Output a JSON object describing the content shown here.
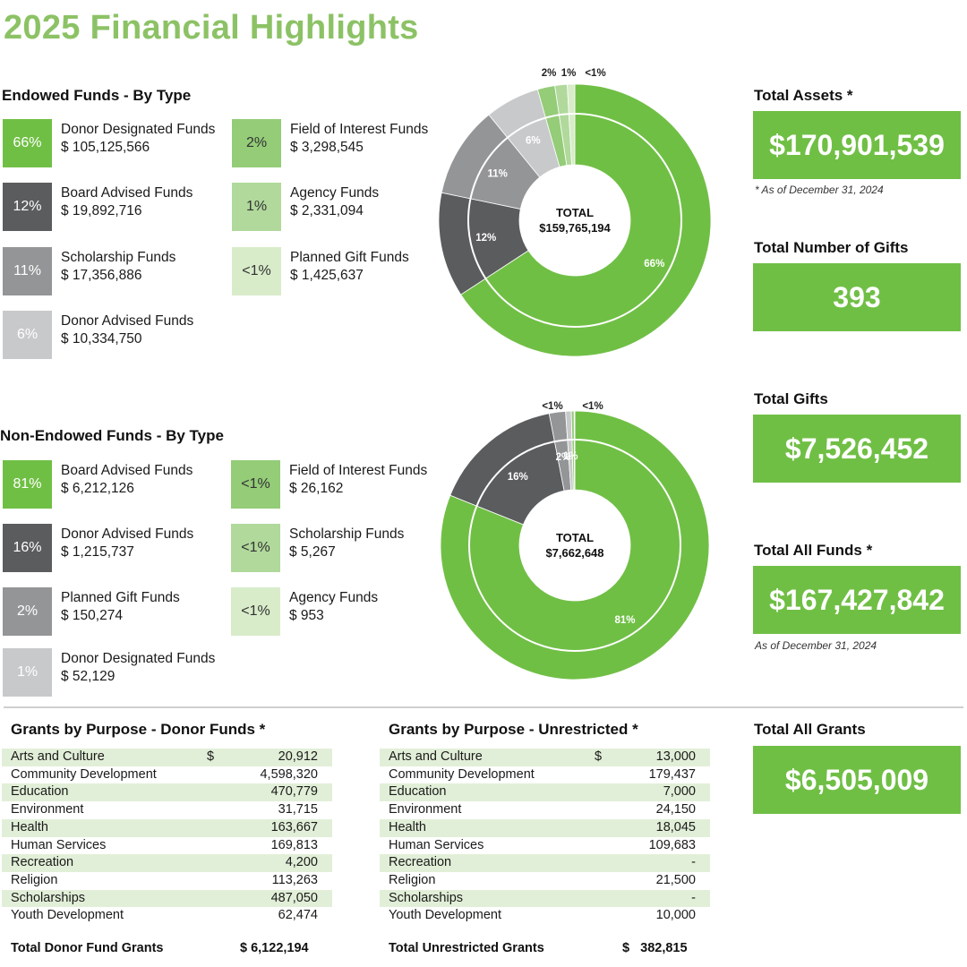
{
  "title": "2025 Financial Highlights",
  "colors": {
    "title": "#8cc265",
    "kpi": "#70bf45",
    "shade": "#e2efd8"
  },
  "endowed": {
    "heading": "Endowed Funds - By Type",
    "items": [
      {
        "pct": "66%",
        "name": "Donor Designated Funds",
        "amount": "$ 105,125,566",
        "color": "#70bf45"
      },
      {
        "pct": "12%",
        "name": "Board Advised Funds",
        "amount": "$ 19,892,716",
        "color": "#5b5c5e"
      },
      {
        "pct": "11%",
        "name": "Scholarship Funds",
        "amount": "$ 17,356,886",
        "color": "#949597"
      },
      {
        "pct": "6%",
        "name": "Donor Advised Funds",
        "amount": "$ 10,334,750",
        "color": "#c8c9cb"
      },
      {
        "pct": "2%",
        "name": "Field of Interest Funds",
        "amount": "$ 3,298,545",
        "color": "#94cc78"
      },
      {
        "pct": "1%",
        "name": "Agency Funds",
        "amount": "$ 2,331,094",
        "color": "#b0d99b"
      },
      {
        "pct": "<1%",
        "name": "Planned Gift Funds",
        "amount": "$ 1,425,637",
        "color": "#d8ecc9"
      }
    ]
  },
  "nonendowed": {
    "heading": "Non-Endowed Funds - By Type",
    "items": [
      {
        "pct": "81%",
        "name": "Board Advised Funds",
        "amount": "$ 6,212,126",
        "color": "#70bf45"
      },
      {
        "pct": "16%",
        "name": "Donor Advised Funds",
        "amount": "$ 1,215,737",
        "color": "#5b5c5e"
      },
      {
        "pct": "2%",
        "name": "Planned Gift Funds",
        "amount": "$ 150,274",
        "color": "#949597"
      },
      {
        "pct": "1%",
        "name": "Donor Designated Funds",
        "amount": "$ 52,129",
        "color": "#c8c9cb"
      },
      {
        "pct": "<1%",
        "name": "Field of Interest Funds",
        "amount": "$ 26,162",
        "color": "#94cc78"
      },
      {
        "pct": "<1%",
        "name": "Scholarship Funds",
        "amount": "$ 5,267",
        "color": "#b0d99b"
      },
      {
        "pct": "<1%",
        "name": "Agency Funds",
        "amount": "$ 953",
        "color": "#d8ecc9"
      }
    ]
  },
  "chart_data": [
    {
      "type": "pie",
      "title": "Endowed Funds - By Type",
      "center_label": "TOTAL",
      "center_value": "$159,765,194",
      "categories": [
        "Donor Designated Funds",
        "Board Advised Funds",
        "Scholarship Funds",
        "Donor Advised Funds",
        "Field of Interest Funds",
        "Agency Funds",
        "Planned Gift Funds"
      ],
      "values": [
        105125566,
        19892716,
        17356886,
        10334750,
        3298545,
        2331094,
        1425637
      ],
      "labels": [
        "66%",
        "12%",
        "11%",
        "6%",
        "2%",
        "1%",
        "<1%"
      ],
      "colors": [
        "#70bf45",
        "#5b5c5e",
        "#949597",
        "#c8c9cb",
        "#94cc78",
        "#b0d99b",
        "#d8ecc9"
      ]
    },
    {
      "type": "pie",
      "title": "Non-Endowed Funds - By Type",
      "center_label": "TOTAL",
      "center_value": "$7,662,648",
      "categories": [
        "Board Advised Funds",
        "Donor Advised Funds",
        "Planned Gift Funds",
        "Donor Designated Funds",
        "Field of Interest Funds",
        "Scholarship Funds",
        "Agency Funds"
      ],
      "values": [
        6212126,
        1215737,
        150274,
        52129,
        26162,
        5267,
        953
      ],
      "labels": [
        "81%",
        "16%",
        "2%",
        "1%",
        "<1%",
        "<1%",
        "<1%"
      ],
      "colors": [
        "#70bf45",
        "#5b5c5e",
        "#949597",
        "#c8c9cb",
        "#94cc78",
        "#b0d99b",
        "#d8ecc9"
      ]
    }
  ],
  "kpis": {
    "assets": {
      "label": "Total Assets *",
      "value": "$170,901,539",
      "note": "* As of December 31, 2024"
    },
    "gifts_count": {
      "label": "Total Number of Gifts",
      "value": "393"
    },
    "gifts": {
      "label": "Total Gifts",
      "value": "$7,526,452"
    },
    "all_funds": {
      "label": "Total All Funds *",
      "value": "$167,427,842",
      "note": "As of December 31, 2024"
    },
    "all_grants": {
      "label": "Total All Grants",
      "value": "$6,505,009"
    }
  },
  "grants_donor": {
    "heading": "Grants by Purpose - Donor Funds *",
    "rows": [
      {
        "purpose": "Arts and Culture",
        "cur": "$",
        "amount": "20,912"
      },
      {
        "purpose": "Community Development",
        "cur": "",
        "amount": "4,598,320"
      },
      {
        "purpose": "Education",
        "cur": "",
        "amount": "470,779"
      },
      {
        "purpose": "Environment",
        "cur": "",
        "amount": "31,715"
      },
      {
        "purpose": "Health",
        "cur": "",
        "amount": "163,667"
      },
      {
        "purpose": "Human Services",
        "cur": "",
        "amount": "169,813"
      },
      {
        "purpose": "Recreation",
        "cur": "",
        "amount": "4,200"
      },
      {
        "purpose": "Religion",
        "cur": "",
        "amount": "113,263"
      },
      {
        "purpose": "Scholarships",
        "cur": "",
        "amount": "487,050"
      },
      {
        "purpose": "Youth Development",
        "cur": "",
        "amount": "62,474"
      }
    ],
    "total_label": "Total Donor Fund Grants",
    "total_value": "$ 6,122,194"
  },
  "grants_unrestricted": {
    "heading": "Grants by Purpose - Unrestricted *",
    "rows": [
      {
        "purpose": "Arts and Culture",
        "cur": "$",
        "amount": "13,000"
      },
      {
        "purpose": "Community Development",
        "cur": "",
        "amount": "179,437"
      },
      {
        "purpose": "Education",
        "cur": "",
        "amount": "7,000"
      },
      {
        "purpose": "Environment",
        "cur": "",
        "amount": "24,150"
      },
      {
        "purpose": "Health",
        "cur": "",
        "amount": "18,045"
      },
      {
        "purpose": "Human Services",
        "cur": "",
        "amount": "109,683"
      },
      {
        "purpose": "Recreation",
        "cur": "",
        "amount": "-"
      },
      {
        "purpose": "Religion",
        "cur": "",
        "amount": "21,500"
      },
      {
        "purpose": "Scholarships",
        "cur": "",
        "amount": "-"
      },
      {
        "purpose": "Youth Development",
        "cur": "",
        "amount": "10,000"
      }
    ],
    "total_label": "Total Unrestricted Grants",
    "total_value": "$   382,815"
  }
}
